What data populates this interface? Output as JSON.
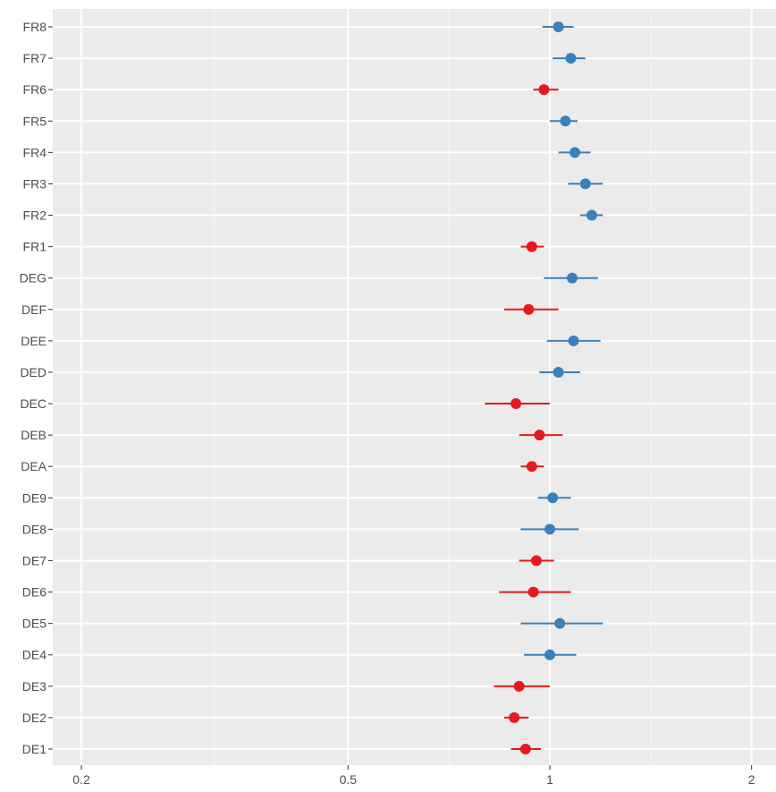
{
  "chart_data": {
    "type": "scatter",
    "subtype": "forest-plot",
    "x_scale": "log",
    "xlim": [
      0.18,
      2.05
    ],
    "x_ticks": [
      {
        "value": 0.2,
        "label": "0.2"
      },
      {
        "value": 0.5,
        "label": "0.5"
      },
      {
        "value": 1,
        "label": "1"
      },
      {
        "value": 2,
        "label": "2"
      }
    ],
    "x_minor_ticks": [
      0.316,
      0.707,
      1.414
    ],
    "grid": true,
    "background": "#ebebeb",
    "colors": {
      "above_one": "#3a80ba",
      "below_one": "#e41a1c",
      "gridline": "#ffffff",
      "reference_line": "#ffffff"
    },
    "reference_x": 1,
    "rows": [
      {
        "label": "FR8",
        "estimate": 1.03,
        "lower": 0.975,
        "upper": 1.085,
        "color": "#3a80ba"
      },
      {
        "label": "FR7",
        "estimate": 1.075,
        "lower": 1.01,
        "upper": 1.13,
        "color": "#3a80ba"
      },
      {
        "label": "FR6",
        "estimate": 0.98,
        "lower": 0.945,
        "upper": 1.03,
        "color": "#e41a1c"
      },
      {
        "label": "FR5",
        "estimate": 1.055,
        "lower": 1.0,
        "upper": 1.1,
        "color": "#3a80ba"
      },
      {
        "label": "FR4",
        "estimate": 1.09,
        "lower": 1.03,
        "upper": 1.15,
        "color": "#3a80ba"
      },
      {
        "label": "FR3",
        "estimate": 1.13,
        "lower": 1.065,
        "upper": 1.2,
        "color": "#3a80ba"
      },
      {
        "label": "FR2",
        "estimate": 1.155,
        "lower": 1.11,
        "upper": 1.2,
        "color": "#3a80ba"
      },
      {
        "label": "FR1",
        "estimate": 0.94,
        "lower": 0.905,
        "upper": 0.98,
        "color": "#e41a1c"
      },
      {
        "label": "DEG",
        "estimate": 1.08,
        "lower": 0.98,
        "upper": 1.18,
        "color": "#3a80ba"
      },
      {
        "label": "DEF",
        "estimate": 0.93,
        "lower": 0.855,
        "upper": 1.03,
        "color": "#e41a1c"
      },
      {
        "label": "DEE",
        "estimate": 1.085,
        "lower": 0.99,
        "upper": 1.19,
        "color": "#3a80ba"
      },
      {
        "label": "DED",
        "estimate": 1.03,
        "lower": 0.965,
        "upper": 1.11,
        "color": "#3a80ba"
      },
      {
        "label": "DEC",
        "estimate": 0.89,
        "lower": 0.8,
        "upper": 1.0,
        "color": "#e41a1c"
      },
      {
        "label": "DEB",
        "estimate": 0.965,
        "lower": 0.9,
        "upper": 1.045,
        "color": "#e41a1c"
      },
      {
        "label": "DEA",
        "estimate": 0.94,
        "lower": 0.905,
        "upper": 0.98,
        "color": "#e41a1c"
      },
      {
        "label": "DE9",
        "estimate": 1.01,
        "lower": 0.96,
        "upper": 1.075,
        "color": "#3a80ba"
      },
      {
        "label": "DE8",
        "estimate": 1.0,
        "lower": 0.905,
        "upper": 1.105,
        "color": "#3a80ba"
      },
      {
        "label": "DE7",
        "estimate": 0.955,
        "lower": 0.9,
        "upper": 1.015,
        "color": "#e41a1c"
      },
      {
        "label": "DE6",
        "estimate": 0.945,
        "lower": 0.84,
        "upper": 1.075,
        "color": "#e41a1c"
      },
      {
        "label": "DE5",
        "estimate": 1.035,
        "lower": 0.905,
        "upper": 1.2,
        "color": "#3a80ba"
      },
      {
        "label": "DE4",
        "estimate": 1.0,
        "lower": 0.915,
        "upper": 1.095,
        "color": "#3a80ba"
      },
      {
        "label": "DE3",
        "estimate": 0.9,
        "lower": 0.825,
        "upper": 1.0,
        "color": "#e41a1c"
      },
      {
        "label": "DE2",
        "estimate": 0.885,
        "lower": 0.855,
        "upper": 0.93,
        "color": "#e41a1c"
      },
      {
        "label": "DE1",
        "estimate": 0.92,
        "lower": 0.875,
        "upper": 0.97,
        "color": "#e41a1c"
      }
    ]
  }
}
